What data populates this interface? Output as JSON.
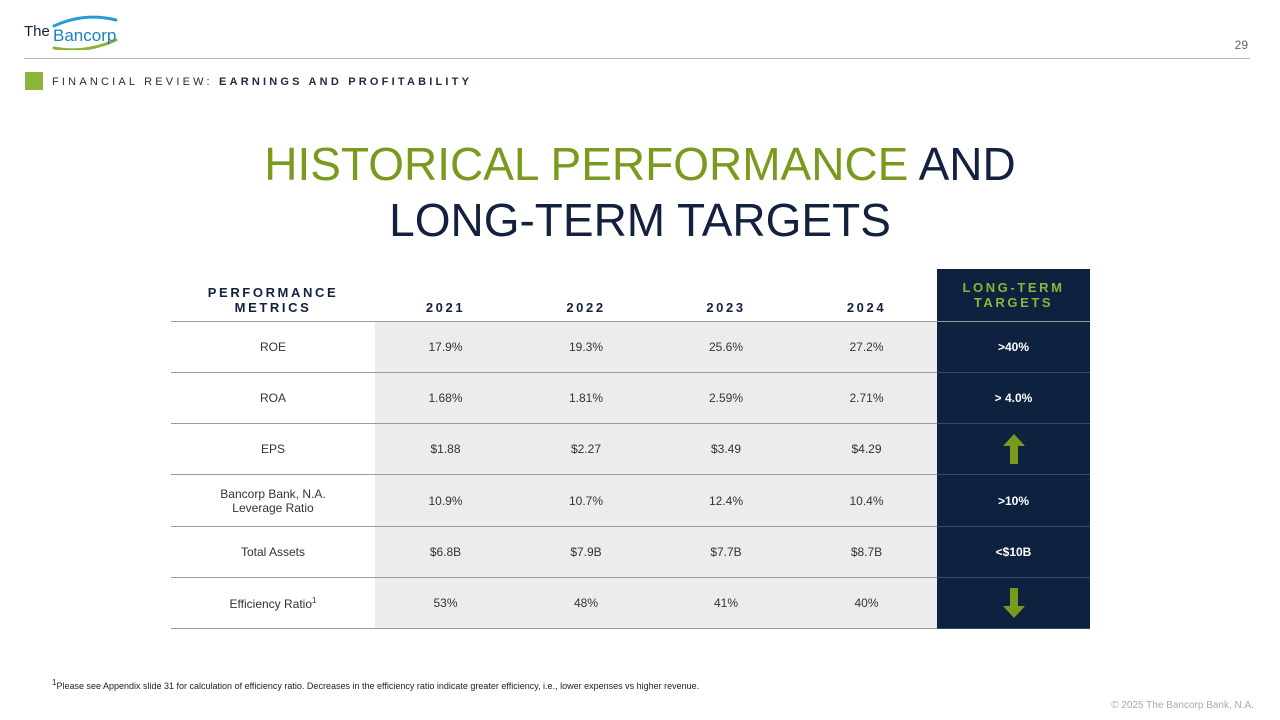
{
  "brand": {
    "logo_text_the": "The",
    "logo_text_bancorp": "Bancorp",
    "primary_color": "#13213f",
    "accent_color": "#8cb43c"
  },
  "page_number": "29",
  "section": {
    "prefix": "FINANCIAL REVIEW:",
    "title": "EARNINGS AND PROFITABILITY"
  },
  "title": {
    "green_part": "HISTORICAL PERFORMANCE",
    "dark_part_1": "AND",
    "dark_part_2": "LONG-TERM TARGETS"
  },
  "table": {
    "headers": {
      "metric": "PERFORMANCE METRICS",
      "y2021": "2021",
      "y2022": "2022",
      "y2023": "2023",
      "y2024": "2024",
      "targets": "LONG-TERM TARGETS"
    },
    "rows": [
      {
        "metric": "ROE",
        "v2021": "17.9%",
        "v2022": "19.3%",
        "v2023": "25.6%",
        "v2024": "27.2%",
        "target": ">40%"
      },
      {
        "metric": "ROA",
        "v2021": "1.68%",
        "v2022": "1.81%",
        "v2023": "2.59%",
        "v2024": "2.71%",
        "target": "> 4.0%"
      },
      {
        "metric": "EPS",
        "v2021": "$1.88",
        "v2022": "$2.27",
        "v2023": "$3.49",
        "v2024": "$4.29",
        "target_icon": "arrow-up-icon"
      },
      {
        "metric_line1": "Bancorp Bank, N.A.",
        "metric_line2": "Leverage Ratio",
        "v2021": "10.9%",
        "v2022": "10.7%",
        "v2023": "12.4%",
        "v2024": "10.4%",
        "target": ">10%"
      },
      {
        "metric": "Total Assets",
        "v2021": "$6.8B",
        "v2022": "$7.9B",
        "v2023": "$7.7B",
        "v2024": "$8.7B",
        "target": "<$10B"
      },
      {
        "metric": "Efficiency Ratio",
        "metric_sup": "1",
        "v2021": "53%",
        "v2022": "48%",
        "v2023": "41%",
        "v2024": "40%",
        "target_icon": "arrow-down-icon"
      }
    ]
  },
  "footnote": {
    "sup": "1",
    "text": "Please see Appendix slide 31 for calculation of efficiency ratio. Decreases in the efficiency ratio indicate greater efficiency, i.e., lower expenses vs higher revenue."
  },
  "copyright": "© 2025 The Bancorp Bank, N.A."
}
